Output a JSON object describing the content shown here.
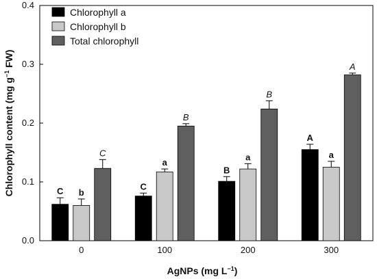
{
  "chart_data": {
    "type": "bar",
    "title": "",
    "xlabel_prefix": "AgNPs (mg L",
    "xlabel_sup": "−1",
    "xlabel_suffix": ")",
    "ylabel_prefix": "Chlorophyll content (mg g",
    "ylabel_sup": "−1",
    "ylabel_suffix": " FW)",
    "ylim": [
      0,
      0.4
    ],
    "yticks": [
      "0.0",
      "0.1",
      "0.2",
      "0.3",
      "0.4"
    ],
    "ytick_values": [
      0,
      0.1,
      0.2,
      0.3,
      0.4
    ],
    "categories": [
      "0",
      "100",
      "200",
      "300"
    ],
    "legend_position": "top-left",
    "grid": false,
    "series": [
      {
        "name": "Chlorophyll a",
        "color": "#000000",
        "values": [
          0.062,
          0.076,
          0.101,
          0.155
        ],
        "errors": [
          0.011,
          0.005,
          0.008,
          0.009
        ],
        "letters": [
          "C",
          "C",
          "B",
          "A"
        ],
        "letter_style": "bold"
      },
      {
        "name": "Chlorophyll b",
        "color": "#c8c8c8",
        "values": [
          0.06,
          0.117,
          0.122,
          0.125
        ],
        "errors": [
          0.011,
          0.005,
          0.009,
          0.01
        ],
        "letters": [
          "b",
          "a",
          "a",
          "a"
        ],
        "letter_style": "bold"
      },
      {
        "name": "Total chlorophyll",
        "color": "#5f5f5f",
        "values": [
          0.123,
          0.195,
          0.224,
          0.282
        ],
        "errors": [
          0.015,
          0.004,
          0.014,
          0.003
        ],
        "letters": [
          "C",
          "B",
          "B",
          "A"
        ],
        "letter_style": "italic"
      }
    ]
  }
}
